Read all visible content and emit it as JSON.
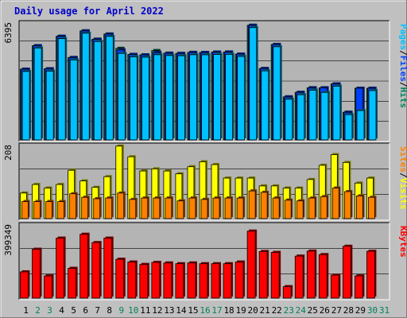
{
  "title": "Daily usage for April 2022",
  "colors": {
    "background": "#c0c0c0",
    "plot_background": "#b4b4b4",
    "hits": "#00805c",
    "files": "#0040ff",
    "pages": "#00c0ff",
    "visits": "#ffff00",
    "sites": "#ff8000",
    "kbytes": "#ff0000",
    "weekday_label": "#000000",
    "weekend_label": "#00805c"
  },
  "chart_data": [
    {
      "type": "bar",
      "name": "hits-files-pages",
      "categories": [
        "1",
        "2",
        "3",
        "4",
        "5",
        "6",
        "7",
        "8",
        "9",
        "10",
        "11",
        "12",
        "13",
        "14",
        "15",
        "16",
        "17",
        "18",
        "19",
        "20",
        "21",
        "22",
        "23",
        "24",
        "25",
        "26",
        "27",
        "28",
        "29",
        "30",
        "31"
      ],
      "weekend_days": [
        "2",
        "3",
        "9",
        "10",
        "16",
        "17",
        "23",
        "24",
        "30",
        "31"
      ],
      "ymax_label": "6395",
      "ylim": [
        0,
        6395
      ],
      "series_labels": [
        "Pages",
        "Files",
        "Hits"
      ],
      "series": [
        {
          "name": "Hits",
          "values": [
            3848,
            5123,
            3869,
            5635,
            4480,
            5928,
            5474,
            5756,
            4977,
            4648,
            4625,
            4857,
            4715,
            4702,
            4758,
            4755,
            4775,
            4779,
            4666,
            6232,
            3883,
            5190,
            2342,
            2587,
            2834,
            2834,
            3047,
            1505,
            2811,
            2811,
            0
          ]
        },
        {
          "name": "Files",
          "values": [
            3846,
            5121,
            3867,
            5633,
            4478,
            5926,
            5472,
            5754,
            4887,
            4646,
            4623,
            4757,
            4713,
            4700,
            4756,
            4753,
            4773,
            4777,
            4664,
            6230,
            3881,
            5188,
            2340,
            2585,
            2832,
            2832,
            3045,
            1503,
            2809,
            2809,
            0
          ]
        },
        {
          "name": "Pages",
          "values": [
            3720,
            4996,
            3740,
            5506,
            4350,
            5800,
            5346,
            5628,
            4700,
            4520,
            4496,
            4630,
            4586,
            4574,
            4628,
            4626,
            4646,
            4650,
            4538,
            6104,
            3754,
            5062,
            2212,
            2458,
            2704,
            2584,
            2918,
            1376,
            1596,
            2682,
            0
          ]
        }
      ]
    },
    {
      "type": "bar",
      "name": "visits-sites",
      "categories": [
        "1",
        "2",
        "3",
        "4",
        "5",
        "6",
        "7",
        "8",
        "9",
        "10",
        "11",
        "12",
        "13",
        "14",
        "15",
        "16",
        "17",
        "18",
        "19",
        "20",
        "21",
        "22",
        "23",
        "24",
        "25",
        "26",
        "27",
        "28",
        "29",
        "30",
        "31"
      ],
      "ymax_label": "208",
      "ylim": [
        0,
        208
      ],
      "series_labels": [
        "Sites",
        "Visits"
      ],
      "series": [
        {
          "name": "Visits",
          "values": [
            72,
            96,
            86,
            96,
            136,
            106,
            88,
            118,
            204,
            174,
            134,
            140,
            134,
            126,
            146,
            160,
            152,
            114,
            114,
            114,
            92,
            92,
            86,
            86,
            110,
            150,
            180,
            158,
            100,
            114,
            0
          ]
        },
        {
          "name": "Sites",
          "values": [
            48,
            48,
            48,
            48,
            70,
            60,
            56,
            58,
            72,
            54,
            58,
            58,
            58,
            50,
            58,
            54,
            58,
            58,
            58,
            78,
            74,
            58,
            52,
            50,
            58,
            62,
            86,
            76,
            64,
            60,
            0
          ]
        }
      ]
    },
    {
      "type": "bar",
      "name": "kbytes",
      "categories": [
        "1",
        "2",
        "3",
        "4",
        "5",
        "6",
        "7",
        "8",
        "9",
        "10",
        "11",
        "12",
        "13",
        "14",
        "15",
        "16",
        "17",
        "18",
        "19",
        "20",
        "21",
        "22",
        "23",
        "24",
        "25",
        "26",
        "27",
        "28",
        "29",
        "30",
        "31"
      ],
      "ymax_label": "399349",
      "ylim": [
        0,
        399349
      ],
      "series_labels": [
        "KBytes"
      ],
      "series": [
        {
          "name": "KBytes",
          "values": [
            142000,
            264000,
            120000,
            324000,
            161000,
            345000,
            300000,
            324000,
            210000,
            195000,
            182000,
            193000,
            190000,
            186000,
            190000,
            186000,
            186000,
            186000,
            195000,
            362000,
            252000,
            247000,
            62000,
            227000,
            254000,
            235000,
            124000,
            280000,
            120000,
            253000,
            0
          ]
        }
      ]
    }
  ]
}
